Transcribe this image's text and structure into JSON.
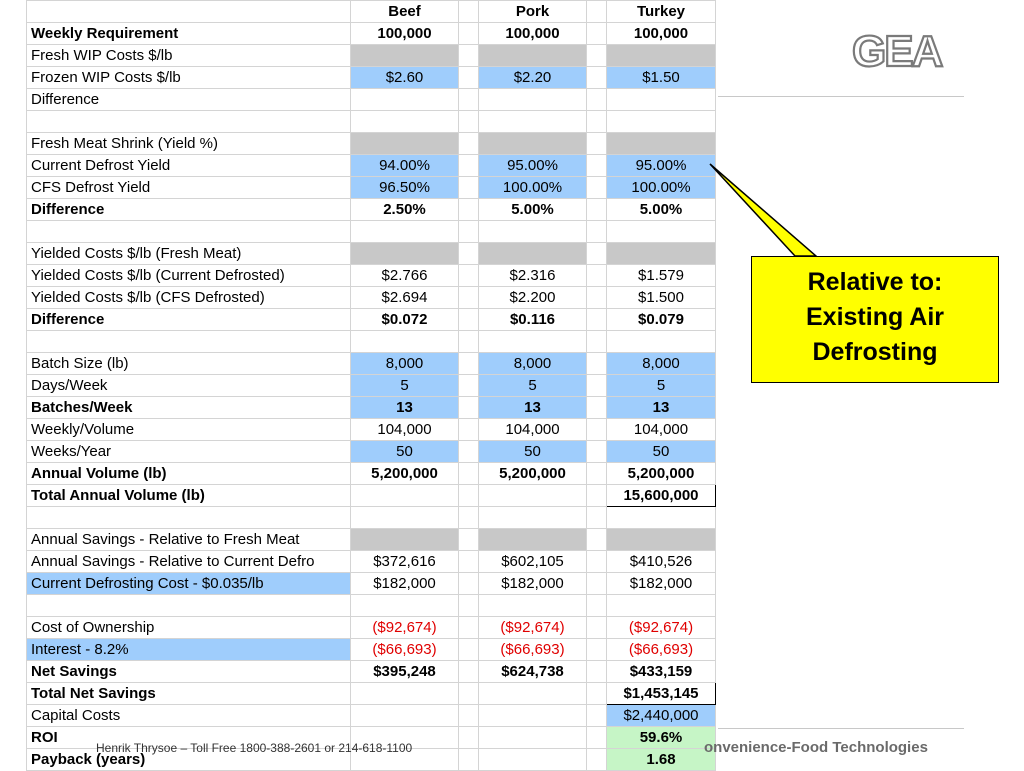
{
  "header": [
    "",
    "Beef",
    "",
    "Pork",
    "",
    "Turkey"
  ],
  "rows": [
    {
      "cells": [
        "Weekly Requirement",
        "100,000",
        "",
        "100,000",
        "",
        "100,000"
      ],
      "bold": true
    },
    {
      "cells": [
        "Fresh WIP Costs $/lb",
        "",
        "",
        "",
        "",
        ""
      ],
      "fill": "gray"
    },
    {
      "cells": [
        "Frozen WIP Costs $/lb",
        "$2.60",
        "",
        "$2.20",
        "",
        "$1.50"
      ],
      "fill": "blue"
    },
    {
      "cells": [
        "Difference",
        "",
        "",
        "",
        "",
        ""
      ],
      "topline": true
    },
    {
      "cells": [
        "",
        "",
        "",
        "",
        "",
        ""
      ]
    },
    {
      "cells": [
        "Fresh Meat Shrink (Yield %)",
        "",
        "",
        "",
        "",
        ""
      ],
      "fill": "gray"
    },
    {
      "cells": [
        "Current Defrost Yield",
        "94.00%",
        "",
        "95.00%",
        "",
        "95.00%"
      ],
      "fill": "blue"
    },
    {
      "cells": [
        "CFS Defrost Yield",
        "96.50%",
        "",
        "100.00%",
        "",
        "100.00%"
      ],
      "fill": "blue"
    },
    {
      "cells": [
        "Difference",
        "2.50%",
        "",
        "5.00%",
        "",
        "5.00%"
      ],
      "bold": true,
      "topline": true
    },
    {
      "cells": [
        "",
        "",
        "",
        "",
        "",
        ""
      ]
    },
    {
      "cells": [
        "Yielded Costs $/lb (Fresh Meat)",
        "",
        "",
        "",
        "",
        ""
      ],
      "fill": "gray"
    },
    {
      "cells": [
        "Yielded Costs $/lb (Current Defrosted)",
        "$2.766",
        "",
        "$2.316",
        "",
        "$1.579"
      ]
    },
    {
      "cells": [
        "Yielded Costs $/lb (CFS Defrosted)",
        "$2.694",
        "",
        "$2.200",
        "",
        "$1.500"
      ]
    },
    {
      "cells": [
        "Difference",
        "$0.072",
        "",
        "$0.116",
        "",
        "$0.079"
      ],
      "bold": true,
      "topline": true
    },
    {
      "cells": [
        "",
        "",
        "",
        "",
        "",
        ""
      ]
    },
    {
      "cells": [
        "Batch Size (lb)",
        "8,000",
        "",
        "8,000",
        "",
        "8,000"
      ],
      "fill": "blue"
    },
    {
      "cells": [
        "Days/Week",
        "5",
        "",
        "5",
        "",
        "5"
      ],
      "fill": "blue"
    },
    {
      "cells": [
        "Batches/Week",
        "13",
        "",
        "13",
        "",
        "13"
      ],
      "bold": true,
      "fill": "blue"
    },
    {
      "cells": [
        "Weekly/Volume",
        "104,000",
        "",
        "104,000",
        "",
        "104,000"
      ]
    },
    {
      "cells": [
        "Weeks/Year",
        "50",
        "",
        "50",
        "",
        "50"
      ],
      "fill": "blue"
    },
    {
      "cells": [
        "Annual Volume (lb)",
        "5,200,000",
        "",
        "5,200,000",
        "",
        "5,200,000"
      ],
      "bold": true
    },
    {
      "cells": [
        "Total Annual Volume (lb)",
        "",
        "",
        "",
        "",
        "15,600,000"
      ],
      "bold": true,
      "topline": true,
      "box_last": true
    },
    {
      "cells": [
        "",
        "",
        "",
        "",
        "",
        ""
      ]
    },
    {
      "cells": [
        "Annual Savings - Relative to Fresh Meat",
        "",
        "",
        "",
        "",
        ""
      ],
      "fill": "gray"
    },
    {
      "cells": [
        "Annual Savings - Relative to Current Defro",
        "$372,616",
        "",
        "$602,105",
        "",
        "$410,526"
      ]
    },
    {
      "cells": [
        "Current Defrosting Cost - $0.035/lb",
        "$182,000",
        "",
        "$182,000",
        "",
        "$182,000"
      ],
      "label_fill": "blue"
    },
    {
      "cells": [
        "",
        "",
        "",
        "",
        "",
        ""
      ]
    },
    {
      "cells": [
        "Cost of Ownership",
        "($92,674)",
        "",
        "($92,674)",
        "",
        "($92,674)"
      ],
      "red": true
    },
    {
      "cells": [
        "Interest - 8.2%",
        "($66,693)",
        "",
        "($66,693)",
        "",
        "($66,693)"
      ],
      "red": true,
      "label_fill": "blue"
    },
    {
      "cells": [
        "Net Savings",
        "$395,248",
        "",
        "$624,738",
        "",
        "$433,159"
      ],
      "bold": true,
      "topline": true
    },
    {
      "cells": [
        "Total Net Savings",
        "",
        "",
        "",
        "",
        "$1,453,145"
      ],
      "bold": true,
      "topline": true,
      "box_last": true
    },
    {
      "cells": [
        "Capital Costs",
        "",
        "",
        "",
        "",
        "$2,440,000"
      ],
      "last_fill": "blue"
    },
    {
      "cells": [
        "ROI",
        "",
        "",
        "",
        "",
        "59.6%"
      ],
      "bold": true,
      "topline": true,
      "last_fill": "green"
    },
    {
      "cells": [
        "Payback (years)",
        "",
        "",
        "",
        "",
        "1.68"
      ],
      "bold": true,
      "last_fill": "green"
    }
  ],
  "callout": {
    "line1": "Relative to:",
    "line2": "Existing Air",
    "line3": "Defrosting"
  },
  "logo_text": "GEA",
  "footer": {
    "contact": "Henrik Thrysoe – Toll Free 1800-388-2601 or  214-618-1100",
    "brand": "onvenience-Food Technologies"
  },
  "colors": {
    "blue_fill": "#9fcdfc",
    "gray_fill": "#c8c8c8",
    "green_fill": "#c6f5c6",
    "negative": "#e00000",
    "callout": "#ffff00"
  }
}
